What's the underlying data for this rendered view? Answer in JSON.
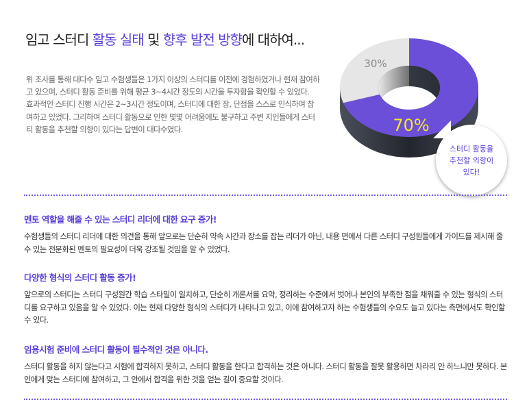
{
  "title": {
    "part1": "임고 스터디 ",
    "hl1": "활동 실태",
    "part2": " 및 ",
    "hl2": "향후 발전 방향",
    "part3": "에 대하여..."
  },
  "intro": [
    "위 조사를 통해 대다수 임고 수험생들은 1가지 이상의 스터디를 이전에 경험하였거나 현재 참여하고 있으며, 스터디 활동 준비를 위해 평균 3~4시간 정도의 시간을 투자함을 확인할 수 있었다.",
    "효과적인 스터디 진행 시간은 2~3시간 정도이며, 스터디에 대한 장, 단점을 스스로 인식하여 참여하고 있었다. 그리하여 스터디 활동으로 인한 몇몇 어려움에도 불구하고 주변 지인들에게 스터티 활동을 추천할 의향이 있다는 답변이 대다수였다."
  ],
  "chart_data": {
    "type": "pie",
    "style": "3d-donut",
    "values": [
      70,
      30
    ],
    "labels": [
      "70%",
      "30%"
    ],
    "colors": [
      "#6b4fd8",
      "#e6e6e6"
    ],
    "label_colors": [
      "#f5e92a",
      "#888888"
    ]
  },
  "bubble": {
    "lines": [
      "스터디 활동을",
      "추천할 의향이",
      "있다!"
    ]
  },
  "sections": [
    {
      "heading": "멘토 역할을 해줄 수 있는 스터디 리더에 대한 요구 증가!",
      "body": "수험생들의 스터디 리더에 대한 의견을 통해 앞으로는 단순히 약속 시간과 장소를 잡는 리더가 아닌, 내용 면에서 다른 스터디 구성원들에게 가이드를 제시해 줄 수 있는 전문화된 멘토의 필요성이 더욱 강조될 것임을 알 수 있었다."
    },
    {
      "heading": "다양한 형식의 스터디 활동 증가!",
      "body": "앞으로의 스터디는 스터디 구성원간 학습 스타일이 일치하고, 단순히 개론서를 요약, 정리하는 수준에서 벗어나 본인의 부족한 점을 채워줄 수 있는 형식의 스터디를 요구하고 있음을 알 수 있었다. 이는 현재 다양한 형식의 스터디가 나타나고 있고, 이에 참여하고자 하는 수험생들의 수요도 늘고 있다는 측면에서도 확인할 수 있다."
    },
    {
      "heading": "임용시험 준비에 스터디 활동이 필수적인 것은 아니다.",
      "body": "스터디 활동을 하지 않는다고 시험에 합격하지 못하고, 스터디 활동을 한다고 합격하는 것은 아니다. 스터디 활동을 잘못 활용하면 차라리 안 하느니만 못하다. 본인에게 맞는 스터디에 참여하고, 그 안에서 합격을 위한 것을 얻는 길이 중요할 것이다."
    }
  ],
  "accent_color": "#5a3fd8"
}
